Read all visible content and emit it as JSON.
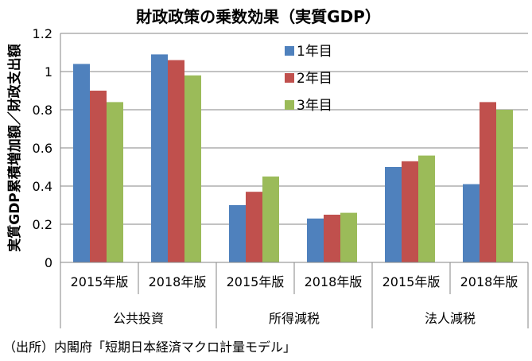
{
  "chart_data": {
    "type": "bar",
    "title": "財政政策の乗数効果（実質GDP）",
    "ylabel": "実質GDP累積増加額／財政支出額",
    "ylim": [
      0,
      1.2
    ],
    "yticks": [
      "0",
      "0.2",
      "0.4",
      "0.6",
      "0.8",
      "1",
      "1.2"
    ],
    "grid": true,
    "legend_position": "top-center",
    "categories": [
      "2015年版",
      "2018年版",
      "2015年版",
      "2018年版",
      "2015年版",
      "2018年版"
    ],
    "groups": [
      "公共投資",
      "所得減税",
      "法人減税"
    ],
    "series": [
      {
        "name": "1年目",
        "color": "#4F81BD",
        "values": [
          1.04,
          1.09,
          0.3,
          0.23,
          0.5,
          0.41
        ]
      },
      {
        "name": "2年目",
        "color": "#C0504D",
        "values": [
          0.9,
          1.06,
          0.37,
          0.25,
          0.53,
          0.84
        ]
      },
      {
        "name": "3年目",
        "color": "#9BBB59",
        "values": [
          0.84,
          0.98,
          0.45,
          0.26,
          0.56,
          0.8
        ]
      }
    ]
  },
  "source_note": "（出所）内閣府「短期日本経済マクロ計量モデル」"
}
